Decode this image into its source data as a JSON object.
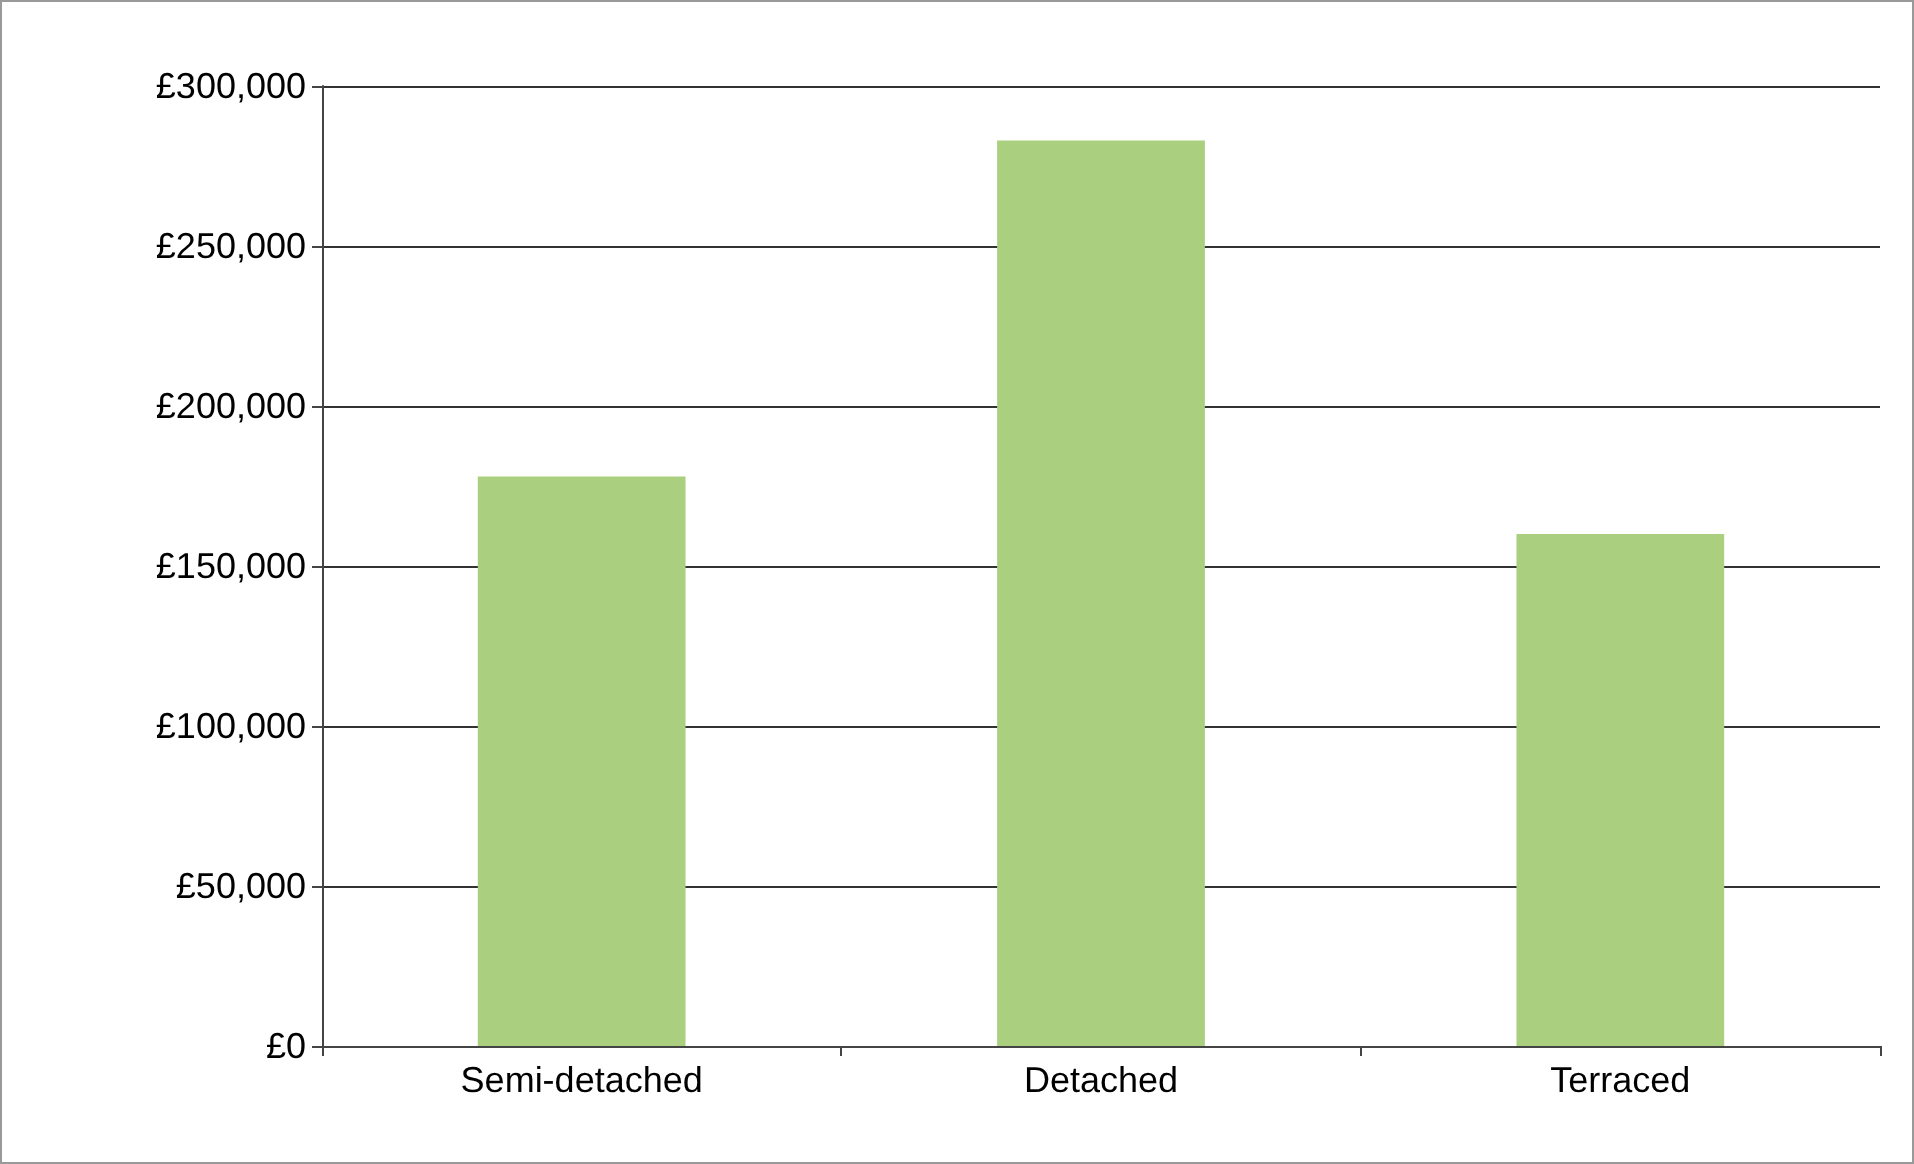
{
  "chart_data": {
    "type": "bar",
    "categories": [
      "Semi-detached",
      "Detached",
      "Terraced"
    ],
    "values": [
      178000,
      283000,
      160000
    ],
    "color": "#a9cf7f",
    "ylim": [
      0,
      300000
    ],
    "yticks": [
      {
        "value": 0,
        "label": "£0"
      },
      {
        "value": 50000,
        "label": "£50,000"
      },
      {
        "value": 100000,
        "label": "£100,000"
      },
      {
        "value": 150000,
        "label": "£150,000"
      },
      {
        "value": 200000,
        "label": "£200,000"
      },
      {
        "value": 250000,
        "label": "£250,000"
      },
      {
        "value": 300000,
        "label": "£300,000"
      }
    ],
    "grid": "y"
  }
}
